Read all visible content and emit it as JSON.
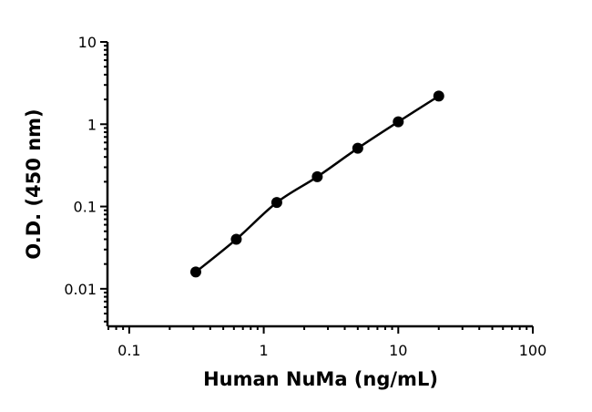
{
  "chart_data": {
    "type": "scatter",
    "title": "",
    "xlabel": "Human NuMa (ng/mL)",
    "ylabel": "O.D. (450 nm)",
    "xscale": "log",
    "yscale": "log",
    "xlim": [
      0.07,
      100
    ],
    "ylim": [
      0.0035,
      10
    ],
    "grid": false,
    "x_ticks": [
      {
        "value": 0.1,
        "label": "0.1"
      },
      {
        "value": 1,
        "label": "1"
      },
      {
        "value": 10,
        "label": "10"
      },
      {
        "value": 100,
        "label": "100"
      }
    ],
    "y_ticks": [
      {
        "value": 0.01,
        "label": "0.01"
      },
      {
        "value": 0.1,
        "label": "0.1"
      },
      {
        "value": 1,
        "label": "1"
      },
      {
        "value": 10,
        "label": "10"
      }
    ],
    "series": [
      {
        "color": "#000000",
        "marker": "circle",
        "fit_line": true,
        "points": [
          {
            "x": 0.3125,
            "y": 0.016
          },
          {
            "x": 0.625,
            "y": 0.04
          },
          {
            "x": 1.25,
            "y": 0.112
          },
          {
            "x": 2.5,
            "y": 0.23
          },
          {
            "x": 5,
            "y": 0.51
          },
          {
            "x": 10,
            "y": 1.07
          },
          {
            "x": 20,
            "y": 2.2
          }
        ]
      }
    ]
  }
}
